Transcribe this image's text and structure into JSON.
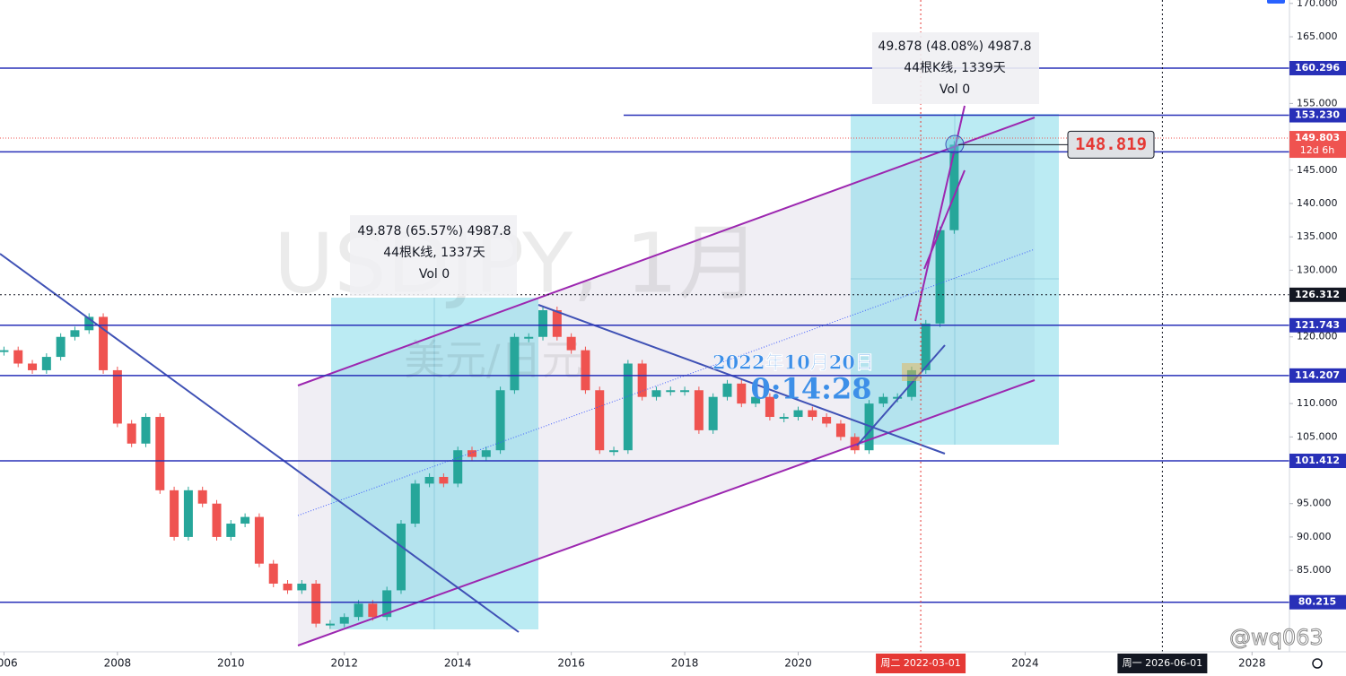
{
  "chart_data": {
    "type": "candlestick",
    "title": "USDJPY, 1月",
    "subtitle": "美元/日元",
    "color_up": "#26a69a",
    "color_down": "#ef5350",
    "series": [
      {
        "name": "USDJPY",
        "x": [
          2006,
          2006.25,
          2006.5,
          2006.75,
          2007,
          2007.25,
          2007.5,
          2007.75,
          2008,
          2008.25,
          2008.5,
          2008.75,
          2009,
          2009.25,
          2009.5,
          2009.75,
          2010,
          2010.25,
          2010.5,
          2010.75,
          2011,
          2011.25,
          2011.5,
          2011.75,
          2012,
          2012.25,
          2012.5,
          2012.75,
          2013,
          2013.25,
          2013.5,
          2013.75,
          2014,
          2014.25,
          2014.5,
          2014.75,
          2015,
          2015.25,
          2015.5,
          2015.75,
          2016,
          2016.25,
          2016.5,
          2016.75,
          2017,
          2017.25,
          2017.5,
          2017.75,
          2018,
          2018.25,
          2018.5,
          2018.75,
          2019,
          2019.25,
          2019.5,
          2019.75,
          2020,
          2020.25,
          2020.5,
          2020.75,
          2021,
          2021.25,
          2021.5,
          2021.75,
          2022,
          2022.25,
          2022.5,
          2022.75
        ],
        "values": [
          118,
          116,
          115,
          117,
          120,
          121,
          123,
          115,
          107,
          104,
          108,
          97,
          90,
          97,
          95,
          90,
          92,
          93,
          86,
          83,
          82,
          83,
          77,
          77,
          78,
          80,
          78,
          82,
          92,
          98,
          99,
          98,
          103,
          102,
          103,
          112,
          120,
          120,
          124,
          120,
          118,
          112,
          103,
          103,
          116,
          111,
          112,
          112,
          112,
          106,
          111,
          113,
          110,
          111,
          108,
          108,
          109,
          108,
          107,
          105,
          103,
          110,
          111,
          111,
          115,
          122,
          136,
          148.819
        ]
      }
    ],
    "xlim": [
      2005.93,
      2028.66
    ],
    "ylim": [
      75,
      170
    ],
    "xticks": [
      2006,
      2008,
      2010,
      2012,
      2014,
      2016,
      2018,
      2020,
      2024,
      2028
    ],
    "yticks": [
      {
        "value": 170,
        "label": "170.000"
      },
      {
        "value": 165,
        "label": "165.000"
      },
      {
        "value": 155,
        "label": "155.000"
      },
      {
        "value": 145,
        "label": "145.000"
      },
      {
        "value": 140,
        "label": "140.000"
      },
      {
        "value": 135,
        "label": "135.000"
      },
      {
        "value": 130,
        "label": "130.000"
      },
      {
        "value": 120,
        "label": "120.000"
      },
      {
        "value": 110,
        "label": "110.000"
      },
      {
        "value": 105,
        "label": "105.000"
      },
      {
        "value": 95,
        "label": "95.000"
      },
      {
        "value": 90,
        "label": "90.000"
      },
      {
        "value": 85,
        "label": "85.000"
      }
    ],
    "levels": [
      160.296,
      {
        "value": 153.23,
        "label": "153.230"
      },
      121.743,
      114.207,
      101.412,
      80.215
    ],
    "dotted_level": 126.312,
    "current_price": 149.803,
    "current_countdown": "12d 6h",
    "callout_price": 148.819,
    "x_markers": [
      {
        "value": 2022.16,
        "label": "周二 2022-03-01",
        "color": "#e53935"
      },
      {
        "value": 2026.42,
        "label": "周一 2026-06-01",
        "color": "#131722"
      }
    ],
    "annotations": [
      {
        "lines": [
          "49.878 (65.57%) 4987.8",
          "44根K线, 1337天",
          "Vol 0"
        ]
      },
      {
        "lines": [
          "49.878 (48.08%) 4987.8",
          "44根K线, 1339天",
          "Vol 0"
        ]
      }
    ],
    "timestamp_date": "2022年10月20日",
    "timestamp_time": "0:14:28",
    "watermark": "@wq063"
  }
}
